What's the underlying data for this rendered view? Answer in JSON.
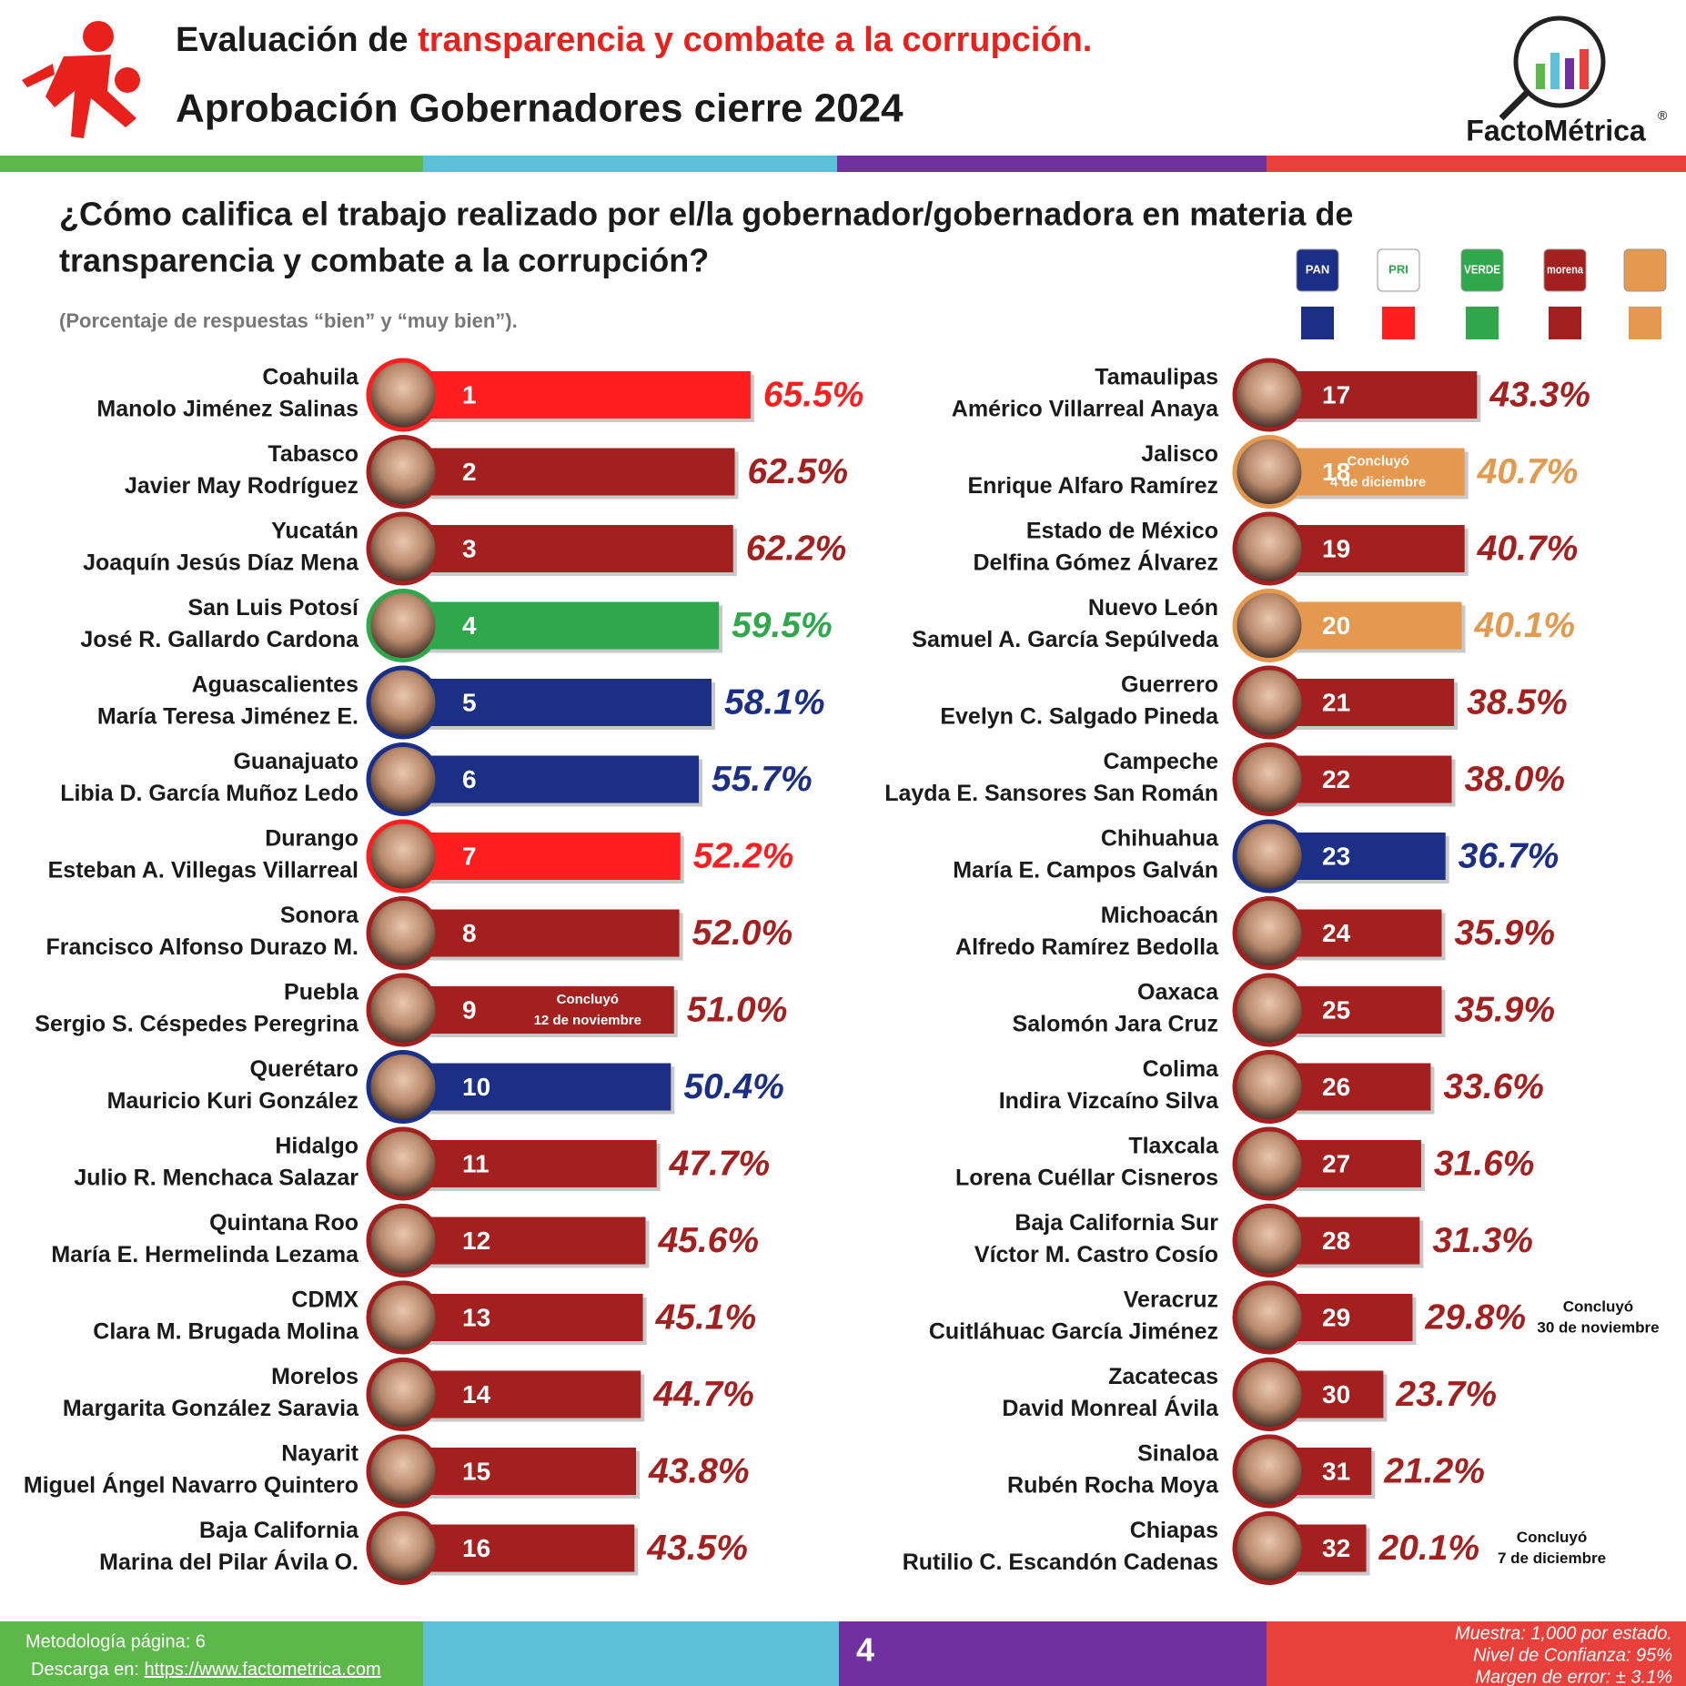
{
  "header": {
    "title_prefix": "Evaluación de",
    "title_highlight": "transparencia y combate a la corrupción.",
    "title_line2": "Aprobación Gobernadores cierre 2024",
    "brand": "FactoMétrica",
    "brand_mark": "®"
  },
  "chart_data": {
    "type": "bar",
    "orientation": "horizontal",
    "question": [
      "¿Cómo califica el trabajo realizado por el/la gobernador/gobernadora en materia de",
      "transparencia y combate a la corrupción?"
    ],
    "subtitle": "(Porcentaje de respuestas “bien” y “muy bien”).",
    "legend": [
      {
        "name": "PAN",
        "color": "#1b2f86"
      },
      {
        "name": "PRI",
        "color": "#ff1f1f"
      },
      {
        "name": "VERDE",
        "color": "#2ea84a"
      },
      {
        "name": "morena",
        "color": "#a3201f"
      },
      {
        "color": "#e5994e"
      }
    ],
    "categories": [
      "Coahuila",
      "Tabasco",
      "Yucatán",
      "San Luis Potosí",
      "Aguascalientes",
      "Guanajuato",
      "Durango",
      "Sonora",
      "Puebla",
      "Querétaro",
      "Hidalgo",
      "Quintana Roo",
      "CDMX",
      "Morelos",
      "Nayarit",
      "Baja California",
      "Tamaulipas",
      "Jalisco",
      "Estado de México",
      "Nuevo León",
      "Guerrero",
      "Campeche",
      "Chihuahua",
      "Michoacán",
      "Oaxaca",
      "Colima",
      "Tlaxcala",
      "Baja California Sur",
      "Veracruz",
      "Zacatecas",
      "Sinaloa",
      "Chiapas"
    ],
    "governors": [
      "Manolo Jiménez Salinas",
      "Javier May Rodríguez",
      "Joaquín Jesús Díaz Mena",
      "José R. Gallardo Cardona",
      "María Teresa Jiménez E.",
      "Libia D. García Muñoz Ledo",
      "Esteban A. Villegas Villarreal",
      "Francisco Alfonso Durazo M.",
      "Sergio S. Céspedes Peregrina",
      "Mauricio Kuri González",
      "Julio R. Menchaca Salazar",
      "María E. Hermelinda Lezama",
      "Clara M. Brugada Molina",
      "Margarita González Saravia",
      "Miguel Ángel Navarro Quintero",
      "Marina del Pilar Ávila O.",
      "Américo Villarreal Anaya",
      "Enrique Alfaro Ramírez",
      "Delfina Gómez Álvarez",
      "Samuel A. García Sepúlveda",
      "Evelyn C. Salgado Pineda",
      "Layda E. Sansores San Román",
      "María E. Campos Galván",
      "Alfredo Ramírez Bedolla",
      "Salomón Jara Cruz",
      "Indira Vizcaíno Silva",
      "Lorena Cuéllar Cisneros",
      "Víctor M. Castro Cosío",
      "Cuitláhuac García Jiménez",
      "David Monreal Ávila",
      "Rubén Rocha Moya",
      "Rutilio C. Escandón Cadenas"
    ],
    "ranks": [
      1,
      2,
      3,
      4,
      5,
      6,
      7,
      8,
      9,
      10,
      11,
      12,
      13,
      14,
      15,
      16,
      17,
      18,
      19,
      20,
      21,
      22,
      23,
      24,
      25,
      26,
      27,
      28,
      29,
      30,
      31,
      32
    ],
    "values": [
      65.5,
      62.5,
      62.2,
      59.5,
      58.1,
      55.7,
      52.2,
      52.0,
      51.0,
      50.4,
      47.7,
      45.6,
      45.1,
      44.7,
      43.8,
      43.5,
      43.3,
      40.7,
      40.7,
      40.1,
      38.5,
      38.0,
      36.7,
      35.9,
      35.9,
      33.6,
      31.6,
      31.3,
      29.8,
      23.7,
      21.2,
      20.1
    ],
    "value_labels": [
      "65.5%",
      "62.5%",
      "62.2%",
      "59.5%",
      "58.1%",
      "55.7%",
      "52.2%",
      "52.0%",
      "51.0%",
      "50.4%",
      "47.7%",
      "45.6%",
      "45.1%",
      "44.7%",
      "43.8%",
      "43.5%",
      "43.3%",
      "40.7%",
      "40.7%",
      "40.1%",
      "38.5%",
      "38.0%",
      "36.7%",
      "35.9%",
      "35.9%",
      "33.6%",
      "31.6%",
      "31.3%",
      "29.8%",
      "23.7%",
      "21.2%",
      "20.1%"
    ],
    "colors": [
      "#ff1f1f",
      "#a3201f",
      "#a3201f",
      "#2ea84a",
      "#1b2f86",
      "#1b2f86",
      "#ff1f1f",
      "#a3201f",
      "#a3201f",
      "#1b2f86",
      "#a3201f",
      "#a3201f",
      "#a3201f",
      "#a3201f",
      "#a3201f",
      "#a3201f",
      "#a3201f",
      "#e5994e",
      "#a3201f",
      "#e5994e",
      "#a3201f",
      "#a3201f",
      "#1b2f86",
      "#a3201f",
      "#a3201f",
      "#a3201f",
      "#a3201f",
      "#a3201f",
      "#a3201f",
      "#a3201f",
      "#a3201f",
      "#a3201f"
    ],
    "notes": [
      null,
      null,
      null,
      null,
      null,
      null,
      null,
      null,
      [
        "Concluyó",
        "12 de noviembre"
      ],
      null,
      null,
      null,
      null,
      null,
      null,
      null,
      null,
      [
        "Concluyó",
        "4 de diciembre"
      ],
      null,
      null,
      null,
      null,
      null,
      null,
      null,
      null,
      null,
      null,
      [
        "Concluyó",
        "30 de noviembre"
      ],
      null,
      null,
      [
        "Concluyó",
        "7 de diciembre"
      ]
    ]
  },
  "footer": {
    "methodology": "Metodología página: 6",
    "download": "Descarga en:",
    "url": "https://www.factometrica.com",
    "page": "4",
    "sample": "Muestra: 1,000 por estado.",
    "confidence": "Nivel de Confianza: 95%",
    "margin": "Margen de error: ± 3.1%"
  }
}
